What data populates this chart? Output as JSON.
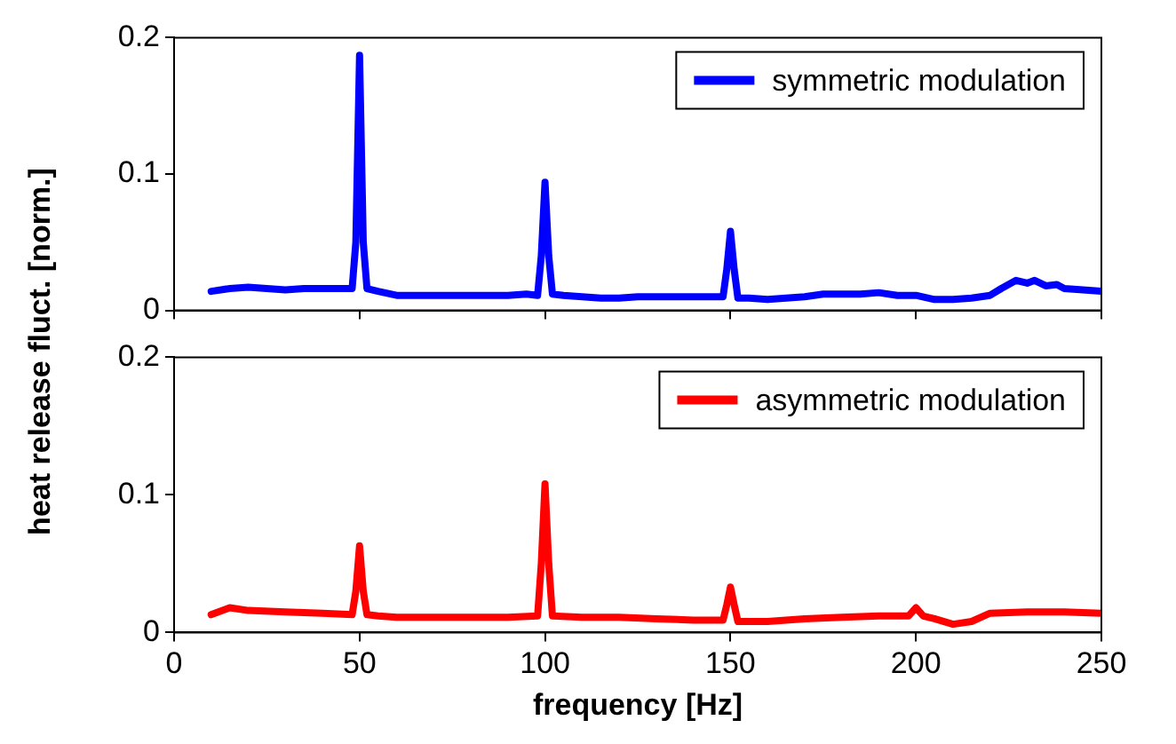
{
  "chart_data": [
    {
      "type": "line",
      "ylabel": "heat release fluct. [norm.]",
      "xlim": [
        0,
        250
      ],
      "xticks": [
        0,
        50,
        100,
        150,
        200,
        250
      ],
      "ylim": [
        0,
        0.2
      ],
      "yticks": [
        0,
        0.1,
        0.2
      ],
      "legend": "top right",
      "tick_labels": "y",
      "grid": false,
      "series": [
        {
          "name": "symmetric modulation",
          "color": "#0000ff",
          "x": [
            10,
            15,
            20,
            25,
            30,
            35,
            40,
            45,
            48,
            49,
            50,
            51,
            52,
            55,
            60,
            65,
            70,
            75,
            80,
            85,
            90,
            95,
            98,
            99,
            100,
            101,
            102,
            105,
            110,
            115,
            120,
            125,
            130,
            135,
            140,
            145,
            148,
            149,
            150,
            151,
            152,
            155,
            160,
            165,
            170,
            175,
            180,
            185,
            190,
            195,
            200,
            205,
            210,
            215,
            220,
            223,
            227,
            230,
            232,
            235,
            238,
            240,
            245,
            250
          ],
          "values": [
            0.014,
            0.016,
            0.017,
            0.016,
            0.015,
            0.016,
            0.016,
            0.016,
            0.016,
            0.05,
            0.187,
            0.05,
            0.016,
            0.014,
            0.011,
            0.011,
            0.011,
            0.011,
            0.011,
            0.011,
            0.011,
            0.012,
            0.011,
            0.04,
            0.094,
            0.04,
            0.012,
            0.011,
            0.01,
            0.009,
            0.009,
            0.01,
            0.01,
            0.01,
            0.01,
            0.01,
            0.01,
            0.03,
            0.058,
            0.03,
            0.009,
            0.009,
            0.008,
            0.009,
            0.01,
            0.012,
            0.012,
            0.012,
            0.013,
            0.011,
            0.011,
            0.008,
            0.008,
            0.009,
            0.011,
            0.016,
            0.022,
            0.02,
            0.022,
            0.018,
            0.019,
            0.016,
            0.015,
            0.014
          ]
        }
      ]
    },
    {
      "type": "line",
      "xlabel": "frequency [Hz]",
      "xlim": [
        0,
        250
      ],
      "xticks": [
        0,
        50,
        100,
        150,
        200,
        250
      ],
      "ylim": [
        0,
        0.2
      ],
      "yticks": [
        0,
        0.1,
        0.2
      ],
      "legend": "top right",
      "grid": false,
      "series": [
        {
          "name": "asymmetric modulation",
          "color": "#ff0000",
          "x": [
            10,
            15,
            20,
            30,
            40,
            48,
            49,
            50,
            51,
            52,
            55,
            60,
            70,
            80,
            90,
            98,
            99,
            100,
            101,
            102,
            110,
            120,
            130,
            140,
            148,
            149,
            150,
            151,
            152,
            160,
            170,
            180,
            190,
            198,
            200,
            202,
            205,
            210,
            215,
            220,
            230,
            240,
            250
          ],
          "values": [
            0.013,
            0.018,
            0.016,
            0.015,
            0.014,
            0.013,
            0.03,
            0.063,
            0.03,
            0.013,
            0.012,
            0.011,
            0.011,
            0.011,
            0.011,
            0.012,
            0.05,
            0.108,
            0.05,
            0.012,
            0.011,
            0.011,
            0.01,
            0.009,
            0.009,
            0.02,
            0.033,
            0.02,
            0.008,
            0.008,
            0.01,
            0.011,
            0.012,
            0.012,
            0.018,
            0.012,
            0.01,
            0.006,
            0.008,
            0.014,
            0.015,
            0.015,
            0.014
          ]
        }
      ]
    }
  ]
}
